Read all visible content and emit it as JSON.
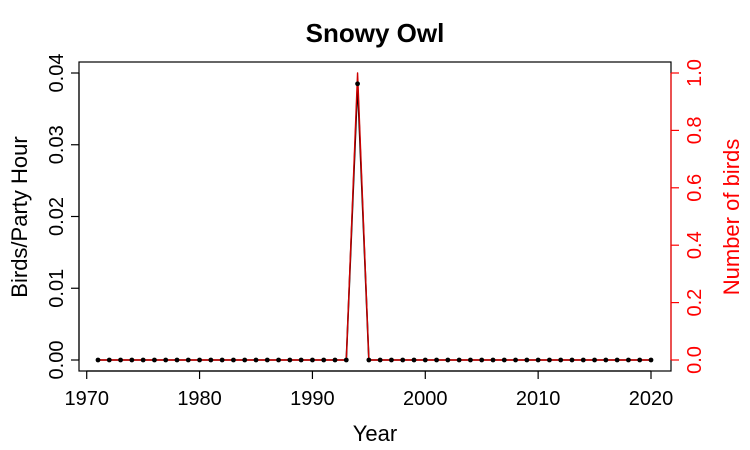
{
  "chart_data": {
    "type": "line",
    "title": "Snowy Owl",
    "xlabel": "Year",
    "ylabel_left": "Birds/Party Hour",
    "ylabel_right": "Number of birds",
    "xlim": [
      1971,
      2020
    ],
    "ylim_left": [
      0,
      0.04
    ],
    "ylim_right": [
      0,
      1.0
    ],
    "x_ticks": [
      1970,
      1980,
      1990,
      2000,
      2010,
      2020
    ],
    "x_tick_labels": [
      "1970",
      "1980",
      "1990",
      "2000",
      "2010",
      "2020"
    ],
    "y_left_ticks": [
      0,
      0.01,
      0.02,
      0.03,
      0.04
    ],
    "y_left_tick_labels": [
      "0.00",
      "0.01",
      "0.02",
      "0.03",
      "0.04"
    ],
    "y_right_ticks": [
      0,
      0.2,
      0.4,
      0.6,
      0.8,
      1.0
    ],
    "y_right_tick_labels": [
      "0.0",
      "0.2",
      "0.4",
      "0.6",
      "0.8",
      "1.0"
    ],
    "grid": false,
    "x": [
      1971,
      1972,
      1973,
      1974,
      1975,
      1976,
      1977,
      1978,
      1979,
      1980,
      1981,
      1982,
      1983,
      1984,
      1985,
      1986,
      1987,
      1988,
      1989,
      1990,
      1991,
      1992,
      1993,
      1994,
      1995,
      1996,
      1997,
      1998,
      1999,
      2000,
      2001,
      2002,
      2003,
      2004,
      2005,
      2006,
      2007,
      2008,
      2009,
      2010,
      2011,
      2012,
      2013,
      2014,
      2015,
      2016,
      2017,
      2018,
      2019,
      2020
    ],
    "series": [
      {
        "axis": "left",
        "color": "#000000",
        "marker": "point",
        "values": [
          0,
          0,
          0,
          0,
          0,
          0,
          0,
          0,
          0,
          0,
          0,
          0,
          0,
          0,
          0,
          0,
          0,
          0,
          0,
          0,
          0,
          0,
          0,
          0.0385,
          0,
          0,
          0,
          0,
          0,
          0,
          0,
          0,
          0,
          0,
          0,
          0,
          0,
          0,
          0,
          0,
          0,
          0,
          0,
          0,
          0,
          0,
          0,
          0,
          0,
          0
        ]
      },
      {
        "axis": "right",
        "color": "#cc0000",
        "marker": "none",
        "values": [
          0,
          0,
          0,
          0,
          0,
          0,
          0,
          0,
          0,
          0,
          0,
          0,
          0,
          0,
          0,
          0,
          0,
          0,
          0,
          0,
          0,
          0,
          0,
          1,
          0,
          0,
          0,
          0,
          0,
          0,
          0,
          0,
          0,
          0,
          0,
          0,
          0,
          0,
          0,
          0,
          0,
          0,
          0,
          0,
          0,
          0,
          0,
          0,
          0,
          0
        ]
      }
    ],
    "colors": {
      "left_axis": "#000000",
      "right_axis": "#ff0000"
    }
  }
}
